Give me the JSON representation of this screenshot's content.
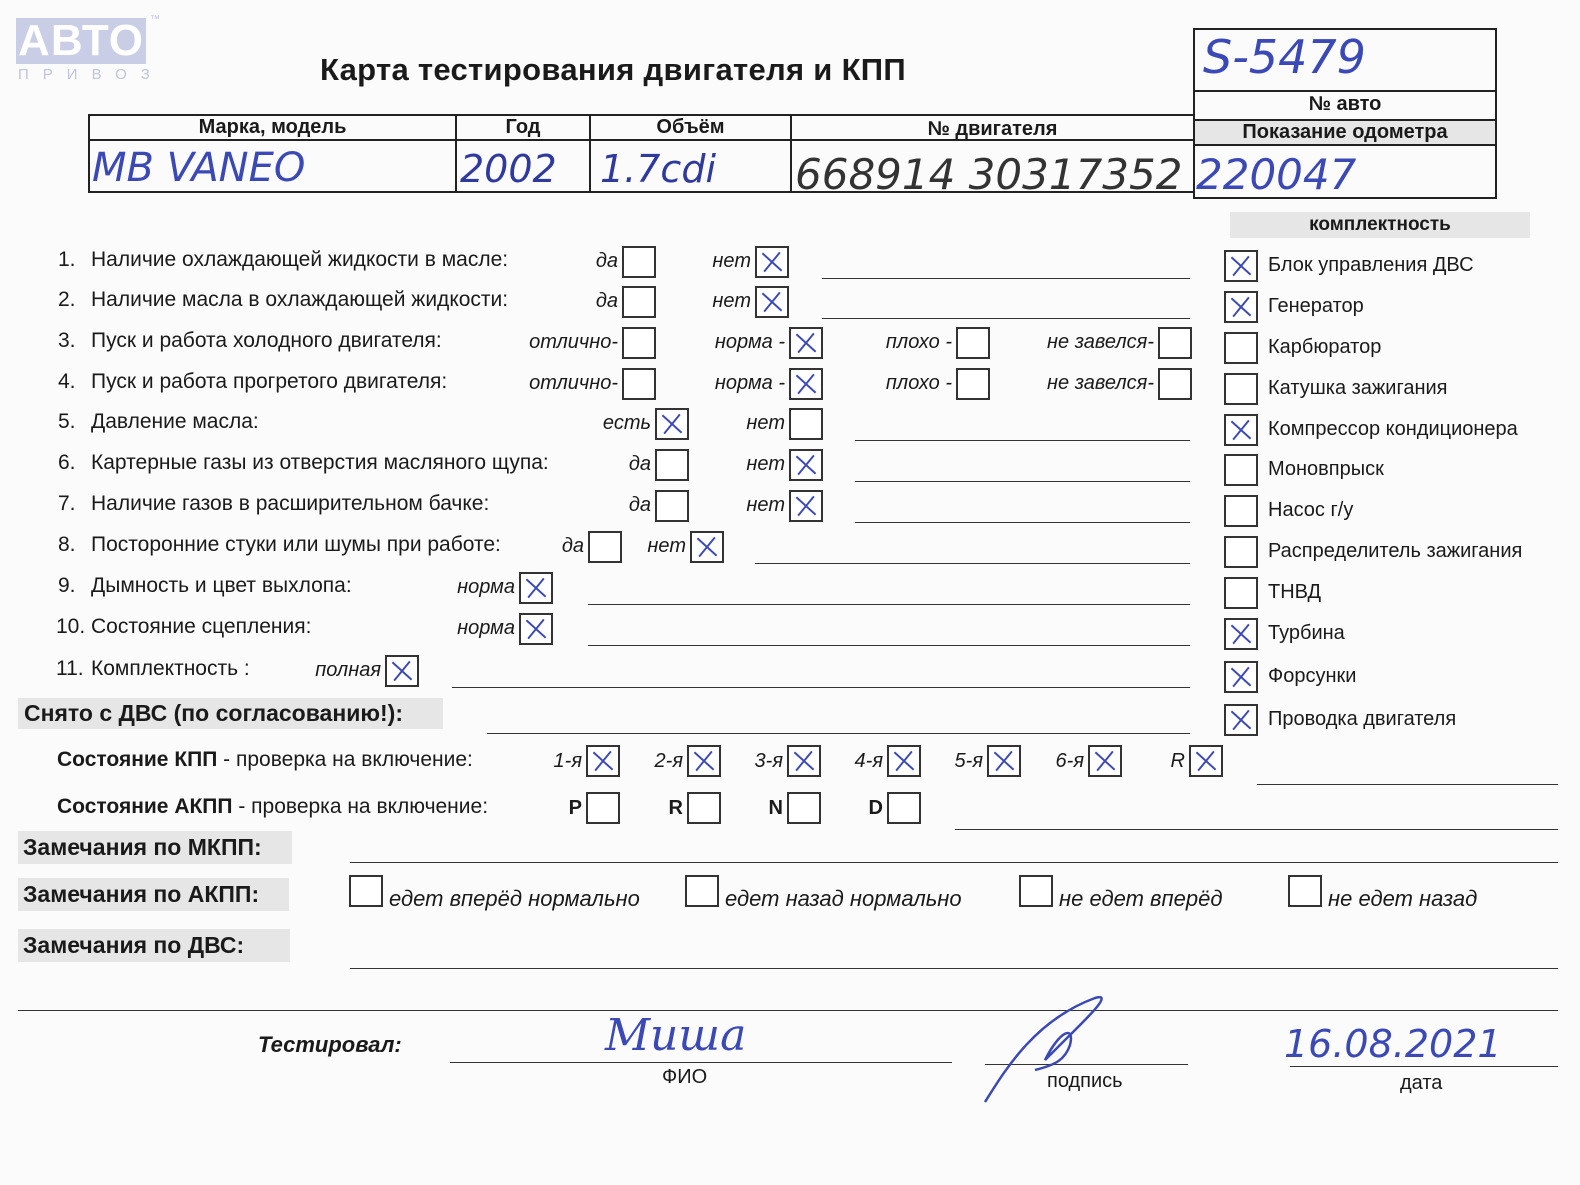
{
  "logo": {
    "text": "АВТО",
    "sub": "ПРИВОЗ",
    "tm": "™"
  },
  "title": "Карта тестирования двигателя  и КПП",
  "vehicle": {
    "headers": [
      "Марка, модель",
      "Год",
      "Объём",
      "№ двигателя"
    ],
    "values": [
      "MB  VANEO",
      "2002",
      "1.7cdi",
      "668914 30317352"
    ]
  },
  "auto_box": {
    "number_value": "S-5479",
    "number_label": "№ авто",
    "odometer_label": "Показание одометра",
    "odometer_value": "220047"
  },
  "checklist": [
    {
      "num": "1.",
      "label": "Наличие охлаждающей жидкости в масле:",
      "options": [
        {
          "label": "да",
          "checked": false
        },
        {
          "label": "нет",
          "checked": true
        }
      ]
    },
    {
      "num": "2.",
      "label": "Наличие масла в охлаждающей жидкости:",
      "options": [
        {
          "label": "да",
          "checked": false
        },
        {
          "label": "нет",
          "checked": true
        }
      ]
    },
    {
      "num": "3.",
      "label": "Пуск и работа холодного двигателя:",
      "options": [
        {
          "label": "отлично-",
          "checked": false
        },
        {
          "label": "норма -",
          "checked": true
        },
        {
          "label": "плохо -",
          "checked": false
        },
        {
          "label": "не завелся-",
          "checked": false
        }
      ]
    },
    {
      "num": "4.",
      "label": "Пуск и работа прогретого двигателя:",
      "options": [
        {
          "label": "отлично-",
          "checked": false
        },
        {
          "label": "норма -",
          "checked": true
        },
        {
          "label": "плохо -",
          "checked": false
        },
        {
          "label": "не завелся-",
          "checked": false
        }
      ]
    },
    {
      "num": "5.",
      "label": "Давление масла:",
      "options": [
        {
          "label": "есть",
          "checked": true
        },
        {
          "label": "нет",
          "checked": false
        }
      ]
    },
    {
      "num": "6.",
      "label": "Картерные газы из отверстия масляного щупа:",
      "options": [
        {
          "label": "да",
          "checked": false
        },
        {
          "label": "нет",
          "checked": true
        }
      ]
    },
    {
      "num": "7.",
      "label": "Наличие газов в расширительном бачке:",
      "options": [
        {
          "label": "да",
          "checked": false
        },
        {
          "label": "нет",
          "checked": true
        }
      ]
    },
    {
      "num": "8.",
      "label": "Посторонние стуки или шумы при работе:",
      "options": [
        {
          "label": "да",
          "checked": false
        },
        {
          "label": "нет",
          "checked": true
        }
      ]
    },
    {
      "num": "9.",
      "label": "Дымность и цвет выхлопа:",
      "options": [
        {
          "label": "норма",
          "checked": true
        }
      ]
    },
    {
      "num": "10.",
      "label": "Состояние сцепления:",
      "options": [
        {
          "label": "норма",
          "checked": true
        }
      ]
    },
    {
      "num": "11.",
      "label": "Комплектность :",
      "options": [
        {
          "label": "полная",
          "checked": true
        }
      ]
    }
  ],
  "completeness": {
    "title": "комплектность",
    "items": [
      {
        "label": "Блок управления ДВС",
        "checked": true
      },
      {
        "label": "Генератор",
        "checked": true
      },
      {
        "label": "Карбюратор",
        "checked": false
      },
      {
        "label": "Катушка зажигания",
        "checked": false
      },
      {
        "label": "Компрессор кондиционера",
        "checked": true
      },
      {
        "label": "Моновпрыск",
        "checked": false
      },
      {
        "label": "Насос г/у",
        "checked": false
      },
      {
        "label": "Распределитель зажигания",
        "checked": false
      },
      {
        "label": "ТНВД",
        "checked": false
      },
      {
        "label": "Турбина",
        "checked": true
      },
      {
        "label": "Форсунки",
        "checked": true
      },
      {
        "label": "Проводка двигателя",
        "checked": true
      }
    ]
  },
  "removed_label": "Снято с ДВС (по согласованию!):",
  "manual_gearbox": {
    "label_bold": "Состояние КПП",
    "label_rest": " - проверка на включение:",
    "gears": [
      {
        "label": "1-я",
        "checked": true
      },
      {
        "label": "2-я",
        "checked": true
      },
      {
        "label": "3-я",
        "checked": true
      },
      {
        "label": "4-я",
        "checked": true
      },
      {
        "label": "5-я",
        "checked": true
      },
      {
        "label": "6-я",
        "checked": true
      },
      {
        "label": "R",
        "checked": true
      }
    ]
  },
  "auto_gearbox": {
    "label_bold": "Состояние АКПП",
    "label_rest": " - проверка на включение:",
    "positions": [
      {
        "label": "P",
        "checked": false
      },
      {
        "label": "R",
        "checked": false
      },
      {
        "label": "N",
        "checked": false
      },
      {
        "label": "D",
        "checked": false
      }
    ]
  },
  "remarks": {
    "mkpp": "Замечания по МКПП:",
    "akpp": "Замечания по АКПП:",
    "akpp_options": [
      {
        "label": "едет вперёд нормально",
        "checked": false
      },
      {
        "label": "едет назад нормально",
        "checked": false
      },
      {
        "label": "не едет вперёд",
        "checked": false
      },
      {
        "label": "не едет назад",
        "checked": false
      }
    ],
    "dvs": "Замечания по ДВС:"
  },
  "footer": {
    "tested_by": "Тестировал:",
    "name_value": "Миша",
    "name_caption": "ФИО",
    "signature_caption": "подпись",
    "date_value": "16.08.2021",
    "date_caption": "дата"
  },
  "colors": {
    "ink": "#3b49b6",
    "paper": "#fbfbfb"
  }
}
